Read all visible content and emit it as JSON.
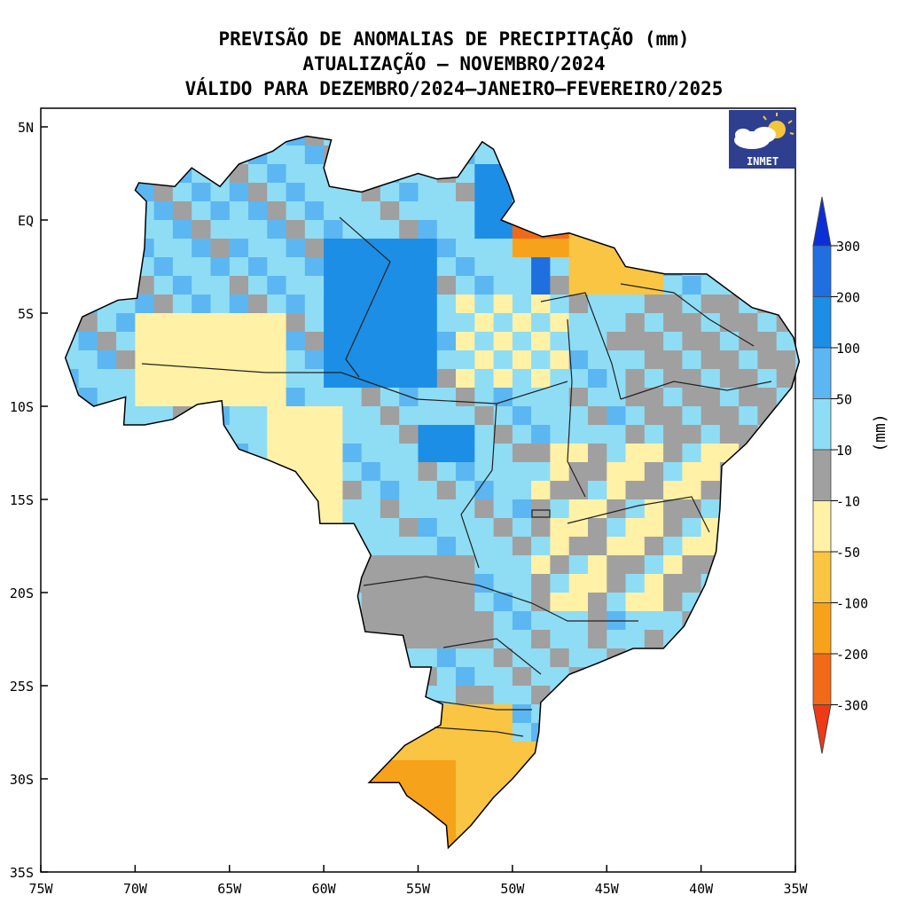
{
  "title": {
    "line1": "PREVISÃO DE ANOMALIAS DE PRECIPITAÇÃO (mm)",
    "line2": "ATUALIZAÇÃO – NOVEMBRO/2024",
    "line3": "VÁLIDO PARA DEZEMBRO/2024–JANEIRO–FEVEREIRO/2025"
  },
  "logo": {
    "text": "INMET"
  },
  "axes": {
    "lat_ticks": [
      "5N",
      "EQ",
      "5S",
      "10S",
      "15S",
      "20S",
      "25S",
      "30S",
      "35S"
    ],
    "lon_ticks": [
      "75W",
      "70W",
      "65W",
      "60W",
      "55W",
      "50W",
      "45W",
      "40W",
      "35W"
    ],
    "lat_range": [
      5,
      -35
    ],
    "lon_range": [
      -75,
      -35
    ]
  },
  "colorbar": {
    "unit": "(mm)",
    "labels": [
      "300",
      "200",
      "100",
      "50",
      "10",
      "-10",
      "-50",
      "-100",
      "-200",
      "-300"
    ],
    "colors": [
      "#0b2fd6",
      "#1f6fe0",
      "#1c8ee6",
      "#5cb6f2",
      "#8fdcf5",
      "#a0a0a0",
      "#fff1a6",
      "#f9c542",
      "#f7a21b",
      "#f26a18",
      "#ee3a16"
    ]
  },
  "map_regions": [
    {
      "name": "Amazonas north",
      "category": "10 to 50",
      "color": "#8fdcf5"
    },
    {
      "name": "Pará center",
      "category": "100 to 200",
      "color": "#1c8ee6"
    },
    {
      "name": "Amapá",
      "category": "100 to 200",
      "color": "#1c8ee6"
    },
    {
      "name": "Northeast coast",
      "category": "-10 to 10",
      "color": "#a0a0a0"
    },
    {
      "name": "Rio Grande do Sul",
      "category": "-100 to -50",
      "color": "#f9c542"
    }
  ]
}
